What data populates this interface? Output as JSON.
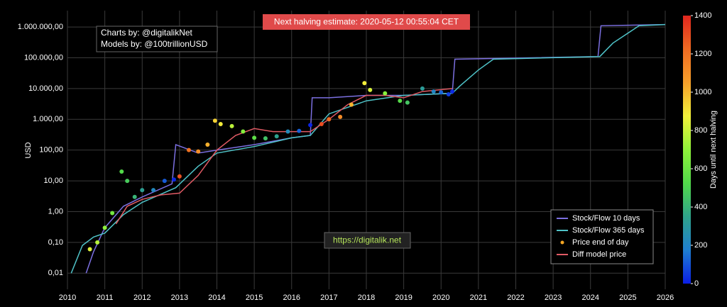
{
  "chart_data": {
    "type": "line",
    "log_y": true,
    "grid": true,
    "legend": "lower right",
    "ylabel": "USD",
    "xlim": [
      2010,
      2026
    ],
    "xticks": [
      2010,
      2011,
      2012,
      2013,
      2014,
      2015,
      2016,
      2017,
      2018,
      2019,
      2020,
      2021,
      2022,
      2023,
      2024,
      2025,
      2026
    ],
    "ylim": [
      0.003,
      3400000
    ],
    "yticks": [
      {
        "value": 0.01,
        "label": "0,01"
      },
      {
        "value": 0.1,
        "label": "0,10"
      },
      {
        "value": 1,
        "label": "1,00"
      },
      {
        "value": 10,
        "label": "10,00"
      },
      {
        "value": 100,
        "label": "100,00"
      },
      {
        "value": 1000,
        "label": "1.000,00"
      },
      {
        "value": 10000,
        "label": "10.000,00"
      },
      {
        "value": 100000,
        "label": "100.000,00"
      },
      {
        "value": 1000000,
        "label": "1.000.000,00"
      }
    ],
    "halving_note": "Next halving estimate: 2020-05-12 00:55:04 CET",
    "credits": [
      "Charts by: @digitalikNet",
      "Models by: @100trillionUSD"
    ],
    "url": "https://digitalik.net",
    "colorbar": {
      "title": "Days until next halving",
      "lim": [
        0,
        1400
      ],
      "ticks": [
        0,
        200,
        400,
        600,
        800,
        1000,
        1200,
        1400
      ],
      "colors": [
        "#0a1ee6",
        "#1f7fd0",
        "#2fa38a",
        "#52d94a",
        "#8ff23a",
        "#f2f03a",
        "#f7a02a",
        "#f06a22",
        "#e0261e"
      ]
    },
    "series": [
      {
        "name": "Stock/Flow 10 days",
        "kind": "line",
        "color": "#7b6fe0",
        "x": [
          2010.5,
          2010.7,
          2011.0,
          2011.5,
          2012.0,
          2012.8,
          2012.9,
          2013.5,
          2014.0,
          2015.0,
          2016.0,
          2016.5,
          2016.55,
          2017.0,
          2018.0,
          2019.0,
          2020.3,
          2020.37,
          2024.2,
          2024.28,
          2026.0
        ],
        "values": [
          0.01,
          0.05,
          0.3,
          1.5,
          3,
          8,
          150,
          80,
          100,
          150,
          250,
          300,
          5000,
          5000,
          6000,
          6000,
          7000,
          90000,
          110000,
          1100000,
          1200000
        ]
      },
      {
        "name": "Stock/Flow 365 days",
        "kind": "line",
        "color": "#4fc3c8",
        "x": [
          2010.1,
          2010.4,
          2010.7,
          2011.0,
          2011.5,
          2012.0,
          2012.9,
          2013.5,
          2014.0,
          2015.0,
          2016.0,
          2016.5,
          2017.0,
          2018.0,
          2019.0,
          2020.3,
          2020.5,
          2021.0,
          2021.4,
          2024.25,
          2024.6,
          2025.3,
          2026.0
        ],
        "values": [
          0.01,
          0.08,
          0.15,
          0.2,
          0.8,
          2,
          6,
          30,
          80,
          130,
          250,
          300,
          1500,
          4000,
          6000,
          7000,
          12000,
          40000,
          90000,
          110000,
          300000,
          1100000,
          1200000
        ]
      },
      {
        "name": "Price end of day",
        "kind": "scatter",
        "color": "#f5a623",
        "x": [
          2010.6,
          2010.8,
          2011.0,
          2011.2,
          2011.45,
          2011.6,
          2011.8,
          2012.0,
          2012.3,
          2012.6,
          2012.85,
          2013.0,
          2013.25,
          2013.5,
          2013.75,
          2013.95,
          2014.1,
          2014.4,
          2014.7,
          2015.0,
          2015.3,
          2015.6,
          2015.9,
          2016.2,
          2016.5,
          2016.8,
          2017.0,
          2017.3,
          2017.6,
          2017.95,
          2018.1,
          2018.5,
          2018.9,
          2019.1,
          2019.5,
          2019.8,
          2020.0,
          2020.2,
          2020.3
        ],
        "values": [
          0.06,
          0.1,
          0.3,
          0.9,
          20,
          10,
          3,
          5,
          5,
          10,
          11,
          14,
          100,
          90,
          150,
          900,
          700,
          600,
          400,
          250,
          240,
          280,
          400,
          420,
          650,
          700,
          1000,
          1200,
          3000,
          15000,
          9000,
          7000,
          4000,
          3500,
          10000,
          8000,
          7500,
          6500,
          8000
        ],
        "color_values": [
          840,
          767,
          694,
          621,
          529,
          475,
          402,
          329,
          219,
          110,
          18,
          1288,
          1197,
          1106,
          1015,
          942,
          887,
          777,
          668,
          558,
          449,
          339,
          230,
          120,
          11,
          1299,
          1226,
          1117,
          1007,
          880,
          825,
          679,
          533,
          460,
          314,
          204,
          131,
          58,
          22
        ]
      },
      {
        "name": "Diff model price",
        "kind": "line",
        "color": "#e05a64",
        "x": [
          2011.3,
          2011.6,
          2012.0,
          2012.5,
          2013.0,
          2013.5,
          2014.0,
          2014.5,
          2015.0,
          2015.5,
          2016.0,
          2016.5,
          2017.0,
          2017.5,
          2018.0,
          2018.5,
          2019.0,
          2019.5,
          2020.3
        ],
        "values": [
          0.4,
          1.5,
          2.5,
          3.5,
          4,
          15,
          100,
          300,
          500,
          400,
          400,
          400,
          1000,
          3000,
          6000,
          6000,
          5000,
          8000,
          10000
        ]
      }
    ]
  }
}
